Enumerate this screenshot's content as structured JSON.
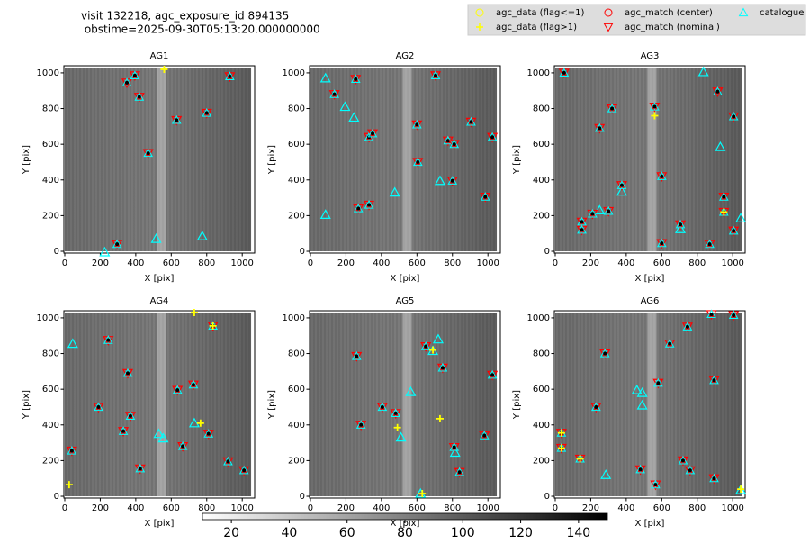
{
  "title": [
    "visit 132218, agc_exposure_id 894135",
    " obstime=2025-09-30T05:13:20.000000000"
  ],
  "legend": [
    "agc_data (flag<=1)",
    "agc_data (flag>1)",
    "agc_match (center)",
    "agc_match (nominal)",
    "catalogue"
  ],
  "colorbar": {
    "lim": [
      10,
      150
    ],
    "ticks": [
      20,
      40,
      60,
      80,
      100,
      120,
      140
    ]
  },
  "chart_data": [
    {
      "type": "scatter",
      "title": "AG1",
      "x_label": "X [pix]",
      "y_label": "Y [pix]",
      "xlim": [
        -5,
        1070
      ],
      "ylim": [
        -10,
        1040
      ],
      "xticks": [
        0,
        200,
        400,
        600,
        800,
        1000
      ],
      "yticks": [
        0,
        200,
        400,
        600,
        800,
        1000
      ],
      "match": {
        "x": [
          350,
          395,
          420,
          470,
          630,
          800,
          930,
          295
        ],
        "y": [
          945,
          985,
          865,
          550,
          735,
          775,
          980,
          40
        ]
      },
      "catalogue": {
        "x": [
          515,
          775,
          225
        ],
        "y": [
          70,
          85,
          -5
        ]
      },
      "flag_gt1": {
        "x": [
          560
        ],
        "y": [
          1020
        ]
      }
    },
    {
      "type": "scatter",
      "title": "AG2",
      "x_label": "X [pix]",
      "y_label": "Y [pix]",
      "xlim": [
        -5,
        1070
      ],
      "ylim": [
        -10,
        1040
      ],
      "xticks": [
        0,
        200,
        400,
        600,
        800,
        1000
      ],
      "yticks": [
        0,
        200,
        400,
        600,
        800,
        1000
      ],
      "match": {
        "x": [
          135,
          255,
          270,
          330,
          350,
          330,
          600,
          605,
          705,
          775,
          810,
          800,
          905,
          985,
          1025
        ],
        "y": [
          880,
          965,
          240,
          640,
          660,
          260,
          710,
          500,
          985,
          620,
          600,
          395,
          725,
          305,
          640
        ]
      },
      "catalogue": {
        "x": [
          85,
          195,
          245,
          85,
          475,
          730
        ],
        "y": [
          970,
          810,
          750,
          205,
          330,
          395
        ]
      },
      "flag_gt1": {
        "x": [],
        "y": []
      }
    },
    {
      "type": "scatter",
      "title": "AG3",
      "x_label": "X [pix]",
      "y_label": "Y [pix]",
      "xlim": [
        -5,
        1070
      ],
      "ylim": [
        -10,
        1040
      ],
      "xticks": [
        0,
        200,
        400,
        600,
        800,
        1000
      ],
      "yticks": [
        0,
        200,
        400,
        600,
        800,
        1000
      ],
      "match": {
        "x": [
          50,
          150,
          150,
          210,
          250,
          300,
          320,
          375,
          560,
          600,
          600,
          705,
          870,
          950,
          950,
          1005,
          1005,
          915
        ],
        "y": [
          1000,
          165,
          120,
          210,
          690,
          225,
          800,
          370,
          810,
          420,
          45,
          150,
          40,
          305,
          220,
          755,
          115,
          895
        ]
      },
      "catalogue": {
        "x": [
          375,
          250,
          705,
          835,
          930,
          1045
        ],
        "y": [
          335,
          230,
          125,
          1005,
          585,
          185
        ]
      },
      "flag_gt1": {
        "x": [
          560,
          950
        ],
        "y": [
          760,
          220
        ]
      }
    },
    {
      "type": "scatter",
      "title": "AG4",
      "x_label": "X [pix]",
      "y_label": "Y [pix]",
      "xlim": [
        -5,
        1070
      ],
      "ylim": [
        -10,
        1040
      ],
      "xticks": [
        0,
        200,
        400,
        600,
        800,
        1000
      ],
      "yticks": [
        0,
        200,
        400,
        600,
        800,
        1000
      ],
      "match": {
        "x": [
          40,
          245,
          190,
          355,
          370,
          330,
          425,
          635,
          725,
          665,
          810,
          920,
          1010,
          835
        ],
        "y": [
          255,
          875,
          500,
          690,
          450,
          365,
          155,
          595,
          625,
          280,
          350,
          195,
          145,
          955
        ]
      },
      "catalogue": {
        "x": [
          45,
          530,
          555,
          730
        ],
        "y": [
          855,
          350,
          325,
          410
        ]
      },
      "flag_gt1": {
        "x": [
          25,
          730,
          765,
          835
        ],
        "y": [
          65,
          1030,
          410,
          955
        ]
      }
    },
    {
      "type": "scatter",
      "title": "AG5",
      "x_label": "X [pix]",
      "y_label": "Y [pix]",
      "xlim": [
        -5,
        1070
      ],
      "ylim": [
        -10,
        1040
      ],
      "xticks": [
        0,
        200,
        400,
        600,
        800,
        1000
      ],
      "yticks": [
        0,
        200,
        400,
        600,
        800,
        1000
      ],
      "match": {
        "x": [
          260,
          285,
          405,
          480,
          650,
          745,
          810,
          840,
          980,
          1025
        ],
        "y": [
          785,
          400,
          500,
          465,
          840,
          720,
          275,
          135,
          340,
          680
        ]
      },
      "catalogue": {
        "x": [
          565,
          510,
          720,
          690,
          620,
          815
        ],
        "y": [
          585,
          330,
          880,
          815,
          15,
          245
        ]
      },
      "flag_gt1": {
        "x": [
          690,
          490,
          730,
          630
        ],
        "y": [
          820,
          385,
          435,
          15
        ]
      }
    },
    {
      "type": "scatter",
      "title": "AG6",
      "x_label": "X [pix]",
      "y_label": "Y [pix]",
      "xlim": [
        -5,
        1070
      ],
      "ylim": [
        -10,
        1040
      ],
      "xticks": [
        0,
        200,
        400,
        600,
        800,
        1000
      ],
      "yticks": [
        0,
        200,
        400,
        600,
        800,
        1000
      ],
      "match": {
        "x": [
          35,
          35,
          140,
          230,
          280,
          480,
          580,
          645,
          720,
          745,
          760,
          880,
          1005,
          895,
          895,
          565
        ],
        "y": [
          355,
          270,
          210,
          500,
          800,
          150,
          635,
          855,
          200,
          950,
          145,
          1020,
          1015,
          100,
          650,
          65
        ]
      },
      "catalogue": {
        "x": [
          285,
          460,
          490,
          490,
          1045
        ],
        "y": [
          120,
          595,
          580,
          510,
          35
        ]
      },
      "flag_gt1": {
        "x": [
          35,
          35,
          140,
          1045
        ],
        "y": [
          355,
          270,
          210,
          40
        ]
      }
    }
  ]
}
